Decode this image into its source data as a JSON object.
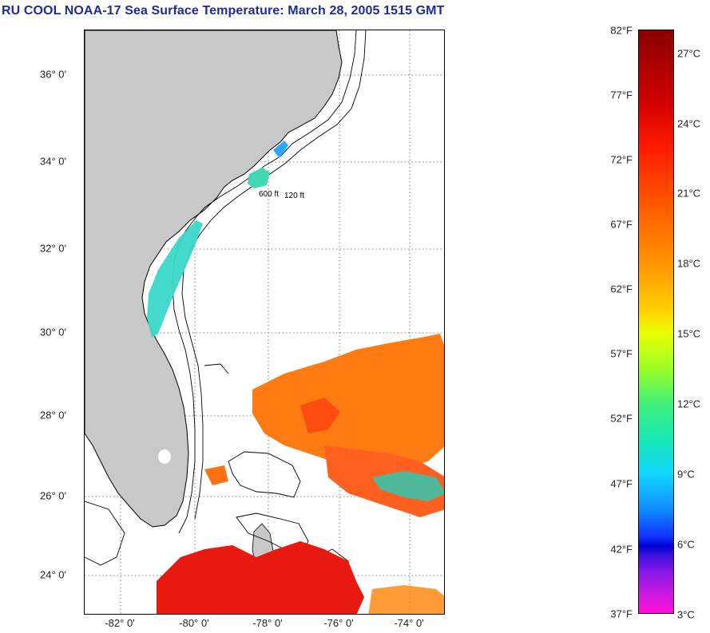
{
  "title": "RU COOL  NOAA-17  Sea Surface Temperature:  March 28, 2005 1515 GMT",
  "map": {
    "lat_labels": [
      "36° 0'",
      "34° 0'",
      "32° 0'",
      "30° 0'",
      "28° 0'",
      "26° 0'",
      "24° 0'"
    ],
    "lon_labels": [
      "-82° 0'",
      "-80° 0'",
      "-78° 0'",
      "-76° 0'",
      "-74° 0'"
    ],
    "contour_labels": [
      "120 ft",
      "600 ft"
    ],
    "land_color": "#c8c8c8",
    "ocean_color": "#ffffff"
  },
  "colorbar": {
    "fahrenheit": [
      "82°F",
      "77°F",
      "72°F",
      "67°F",
      "62°F",
      "57°F",
      "52°F",
      "47°F",
      "42°F",
      "37°F"
    ],
    "celsius": [
      "27°C",
      "24°C",
      "21°C",
      "18°C",
      "15°C",
      "12°C",
      "9°C",
      "6°C",
      "3°C"
    ],
    "range_f": [
      37,
      82
    ],
    "range_c": [
      3,
      28
    ]
  }
}
